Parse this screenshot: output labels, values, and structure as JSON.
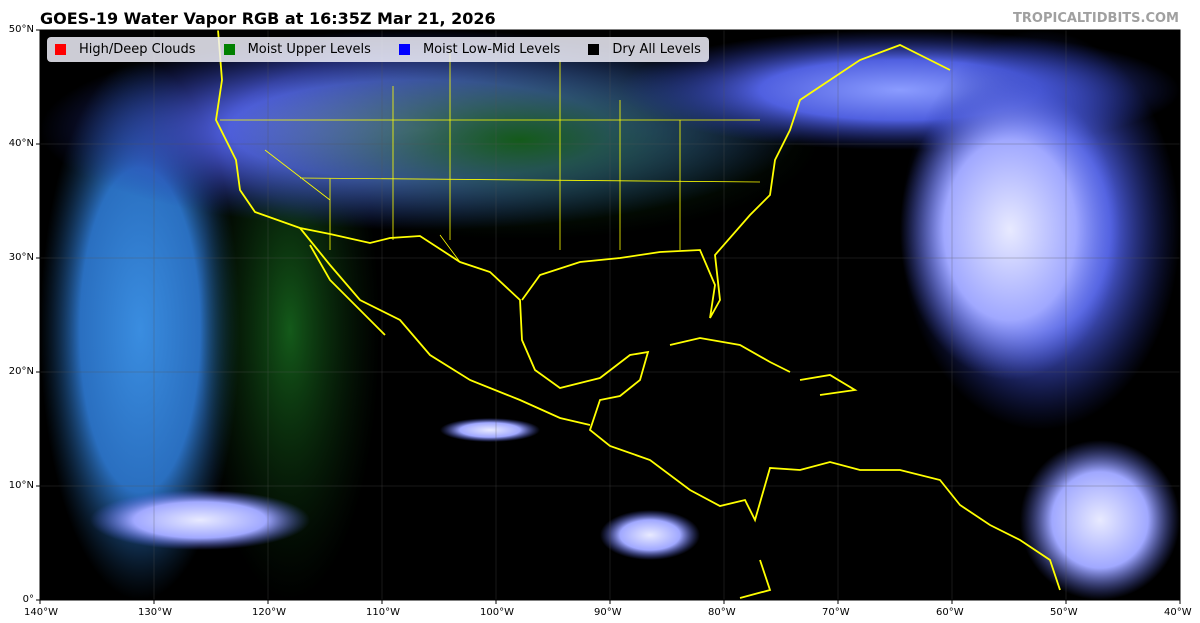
{
  "title": "GOES-19 Water Vapor RGB at 16:35Z Mar 21, 2026",
  "brand": "TROPICALTIDBITS.COM",
  "legend": [
    {
      "label": "High/Deep Clouds",
      "color": "#ff0000"
    },
    {
      "label": "Moist Upper Levels",
      "color": "#008000"
    },
    {
      "label": "Moist Low-Mid Levels",
      "color": "#0000ff"
    },
    {
      "label": "Dry All Levels",
      "color": "#000000"
    }
  ],
  "lat_ticks": [
    "0°",
    "10°N",
    "20°N",
    "30°N",
    "40°N",
    "50°N"
  ],
  "lon_ticks": [
    "140°W",
    "130°W",
    "120°W",
    "110°W",
    "100°W",
    "90°W",
    "80°W",
    "70°W",
    "60°W",
    "50°W",
    "40°W"
  ],
  "coastline_color": "#ffff00"
}
